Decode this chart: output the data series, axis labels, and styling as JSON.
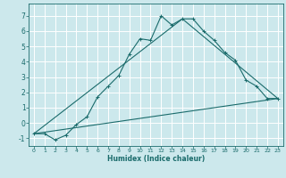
{
  "title": "",
  "xlabel": "Humidex (Indice chaleur)",
  "ylabel": "",
  "bg_color": "#cce8ec",
  "grid_color": "#ffffff",
  "line_color": "#1a6b6b",
  "xlim": [
    -0.5,
    23.5
  ],
  "ylim": [
    -1.5,
    7.8
  ],
  "xticks": [
    0,
    1,
    2,
    3,
    4,
    5,
    6,
    7,
    8,
    9,
    10,
    11,
    12,
    13,
    14,
    15,
    16,
    17,
    18,
    19,
    20,
    21,
    22,
    23
  ],
  "yticks": [
    -1,
    0,
    1,
    2,
    3,
    4,
    5,
    6,
    7
  ],
  "line1_x": [
    0,
    1,
    2,
    3,
    4,
    5,
    6,
    7,
    8,
    9,
    10,
    11,
    12,
    13,
    14,
    15,
    16,
    17,
    18,
    19,
    20,
    21,
    22,
    23
  ],
  "line1_y": [
    -0.7,
    -0.7,
    -1.1,
    -0.8,
    -0.1,
    0.4,
    1.7,
    2.4,
    3.1,
    4.5,
    5.5,
    5.4,
    7.0,
    6.4,
    6.8,
    6.8,
    6.0,
    5.4,
    4.6,
    4.1,
    2.8,
    2.4,
    1.6,
    1.6
  ],
  "line2_x": [
    0,
    23
  ],
  "line2_y": [
    -0.7,
    1.6
  ],
  "line3_x": [
    0,
    14,
    23
  ],
  "line3_y": [
    -0.7,
    6.8,
    1.6
  ]
}
